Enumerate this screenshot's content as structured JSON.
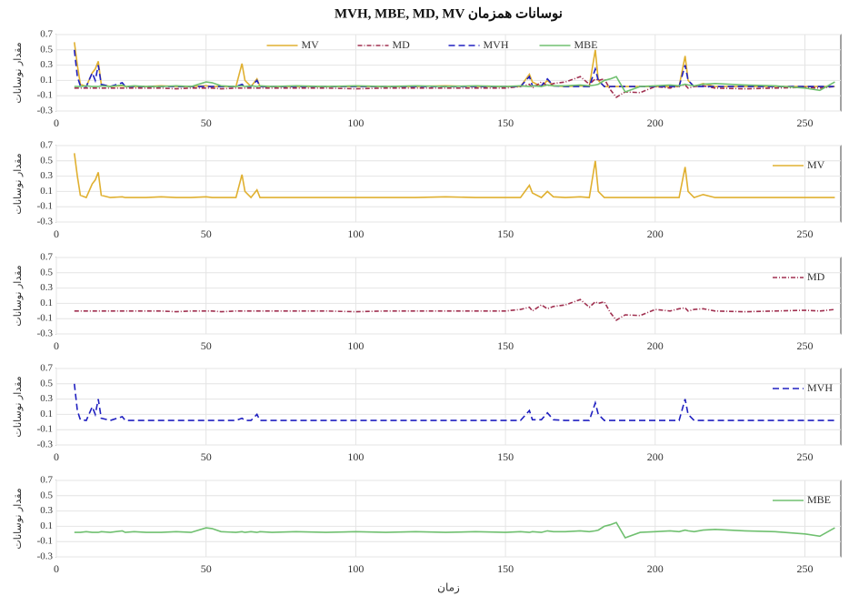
{
  "chart_data": [
    {
      "type": "line",
      "title": "MVH, MBE, MD, MV نوسانات همزمان",
      "ylabel": "مقدار نوسانات",
      "legend": "top",
      "grid": true,
      "xlim": [
        0,
        262
      ],
      "xticks": [
        0,
        50,
        100,
        150,
        200,
        250
      ],
      "ylim": [
        -0.3,
        0.7
      ],
      "yticks": [
        -0.3,
        -0.1,
        0.1,
        0.3,
        0.5,
        0.7
      ],
      "x": [
        6,
        7,
        8,
        10,
        12,
        13,
        14,
        15,
        18,
        22,
        23,
        26,
        30,
        35,
        40,
        45,
        50,
        52,
        55,
        60,
        62,
        63,
        65,
        67,
        68,
        72,
        80,
        90,
        100,
        110,
        120,
        130,
        140,
        150,
        155,
        158,
        159,
        162,
        164,
        166,
        170,
        175,
        178,
        180,
        181,
        183,
        185,
        187,
        190,
        195,
        200,
        205,
        208,
        210,
        211,
        213,
        216,
        220,
        230,
        240,
        250,
        255,
        260
      ],
      "series": [
        {
          "name": "MV",
          "color": "#e0b030",
          "style": "solid",
          "values": [
            0.6,
            0.3,
            0.05,
            0.02,
            0.2,
            0.25,
            0.35,
            0.05,
            0.02,
            0.03,
            0.02,
            0.02,
            0.02,
            0.03,
            0.02,
            0.02,
            0.03,
            0.02,
            0.02,
            0.02,
            0.32,
            0.1,
            0.02,
            0.12,
            0.02,
            0.02,
            0.02,
            0.02,
            0.02,
            0.02,
            0.02,
            0.03,
            0.02,
            0.02,
            0.02,
            0.18,
            0.08,
            0.02,
            0.1,
            0.03,
            0.02,
            0.03,
            0.02,
            0.5,
            0.1,
            0.02,
            0.02,
            0.02,
            0.02,
            0.02,
            0.02,
            0.02,
            0.02,
            0.42,
            0.1,
            0.02,
            0.06,
            0.02,
            0.02,
            0.02,
            0.02,
            0.02,
            0.02
          ]
        },
        {
          "name": "MD",
          "color": "#a03050",
          "style": "dashdot",
          "values": [
            0,
            0,
            0,
            0,
            0,
            0,
            0,
            0,
            0,
            0,
            0,
            0,
            0,
            0,
            -0.01,
            0,
            0,
            0,
            -0.01,
            0,
            0,
            0,
            0,
            0,
            0,
            0,
            0,
            0,
            -0.01,
            0,
            0,
            0,
            0,
            0,
            0.02,
            0.05,
            0,
            0.08,
            0.03,
            0.06,
            0.08,
            0.15,
            0.05,
            0.12,
            0.1,
            0.12,
            -0.02,
            -0.12,
            -0.05,
            -0.06,
            0.02,
            0,
            0.03,
            0.04,
            0,
            0.02,
            0.03,
            0,
            -0.01,
            0,
            0.01,
            0,
            0.02
          ]
        },
        {
          "name": "MVH",
          "color": "#2020c0",
          "style": "dashed",
          "values": [
            0.5,
            0.15,
            0.03,
            0.02,
            0.2,
            0.1,
            0.3,
            0.05,
            0.02,
            0.07,
            0.02,
            0.02,
            0.02,
            0.02,
            0.02,
            0.02,
            0.02,
            0.02,
            0.02,
            0.02,
            0.05,
            0.02,
            0.02,
            0.1,
            0.02,
            0.02,
            0.02,
            0.02,
            0.02,
            0.02,
            0.02,
            0.02,
            0.02,
            0.02,
            0.02,
            0.15,
            0.03,
            0.03,
            0.12,
            0.03,
            0.02,
            0.02,
            0.02,
            0.25,
            0.1,
            0.02,
            0.02,
            0.02,
            0.02,
            0.02,
            0.02,
            0.02,
            0.02,
            0.3,
            0.1,
            0.02,
            0.02,
            0.02,
            0.02,
            0.02,
            0.02,
            0.02,
            0.02
          ]
        },
        {
          "name": "MBE",
          "color": "#70c070",
          "style": "solid",
          "values": [
            0.02,
            0.02,
            0.02,
            0.03,
            0.02,
            0.02,
            0.02,
            0.03,
            0.02,
            0.04,
            0.02,
            0.03,
            0.02,
            0.02,
            0.03,
            0.02,
            0.08,
            0.07,
            0.03,
            0.02,
            0.03,
            0.02,
            0.03,
            0.02,
            0.03,
            0.02,
            0.03,
            0.02,
            0.03,
            0.02,
            0.03,
            0.02,
            0.03,
            0.02,
            0.03,
            0.02,
            0.03,
            0.02,
            0.04,
            0.03,
            0.03,
            0.04,
            0.03,
            0.04,
            0.05,
            0.1,
            0.12,
            0.15,
            -0.05,
            0.02,
            0.03,
            0.04,
            0.03,
            0.05,
            0.04,
            0.03,
            0.05,
            0.06,
            0.04,
            0.03,
            0.0,
            -0.03,
            0.08
          ]
        }
      ]
    },
    {
      "type": "line",
      "ylabel": "مقدار نوسانات",
      "legend": "right",
      "grid": true,
      "xlim": [
        0,
        262
      ],
      "xticks": [
        0,
        50,
        100,
        150,
        200,
        250
      ],
      "ylim": [
        -0.3,
        0.7
      ],
      "yticks": [
        -0.3,
        -0.1,
        0.1,
        0.3,
        0.5,
        0.7
      ],
      "x": [
        6,
        7,
        8,
        10,
        12,
        13,
        14,
        15,
        18,
        22,
        23,
        26,
        30,
        35,
        40,
        45,
        50,
        52,
        55,
        60,
        62,
        63,
        65,
        67,
        68,
        72,
        80,
        90,
        100,
        110,
        120,
        130,
        140,
        150,
        155,
        158,
        159,
        162,
        164,
        166,
        170,
        175,
        178,
        180,
        181,
        183,
        185,
        187,
        190,
        195,
        200,
        205,
        208,
        210,
        211,
        213,
        216,
        220,
        230,
        240,
        250,
        255,
        260
      ],
      "series": [
        {
          "name": "MV",
          "color": "#e0b030",
          "style": "solid",
          "values": [
            0.6,
            0.3,
            0.05,
            0.02,
            0.2,
            0.25,
            0.35,
            0.05,
            0.02,
            0.03,
            0.02,
            0.02,
            0.02,
            0.03,
            0.02,
            0.02,
            0.03,
            0.02,
            0.02,
            0.02,
            0.32,
            0.1,
            0.02,
            0.12,
            0.02,
            0.02,
            0.02,
            0.02,
            0.02,
            0.02,
            0.02,
            0.03,
            0.02,
            0.02,
            0.02,
            0.18,
            0.08,
            0.02,
            0.1,
            0.03,
            0.02,
            0.03,
            0.02,
            0.5,
            0.1,
            0.02,
            0.02,
            0.02,
            0.02,
            0.02,
            0.02,
            0.02,
            0.02,
            0.42,
            0.1,
            0.02,
            0.06,
            0.02,
            0.02,
            0.02,
            0.02,
            0.02,
            0.02
          ]
        }
      ]
    },
    {
      "type": "line",
      "ylabel": "مقدار نوسانات",
      "legend": "right",
      "grid": true,
      "xlim": [
        0,
        262
      ],
      "xticks": [
        0,
        50,
        100,
        150,
        200,
        250
      ],
      "ylim": [
        -0.3,
        0.7
      ],
      "yticks": [
        -0.3,
        -0.1,
        0.1,
        0.3,
        0.5,
        0.7
      ],
      "x": [
        6,
        7,
        8,
        10,
        12,
        13,
        14,
        15,
        18,
        22,
        23,
        26,
        30,
        35,
        40,
        45,
        50,
        52,
        55,
        60,
        62,
        63,
        65,
        67,
        68,
        72,
        80,
        90,
        100,
        110,
        120,
        130,
        140,
        150,
        155,
        158,
        159,
        162,
        164,
        166,
        170,
        175,
        178,
        180,
        181,
        183,
        185,
        187,
        190,
        195,
        200,
        205,
        208,
        210,
        211,
        213,
        216,
        220,
        230,
        240,
        250,
        255,
        260
      ],
      "series": [
        {
          "name": "MD",
          "color": "#a03050",
          "style": "dashdot",
          "values": [
            0,
            0,
            0,
            0,
            0,
            0,
            0,
            0,
            0,
            0,
            0,
            0,
            0,
            0,
            -0.01,
            0,
            0,
            0,
            -0.01,
            0,
            0,
            0,
            0,
            0,
            0,
            0,
            0,
            0,
            -0.01,
            0,
            0,
            0,
            0,
            0,
            0.02,
            0.05,
            0,
            0.08,
            0.03,
            0.06,
            0.08,
            0.15,
            0.05,
            0.12,
            0.1,
            0.12,
            -0.02,
            -0.12,
            -0.05,
            -0.06,
            0.02,
            0,
            0.03,
            0.04,
            0,
            0.02,
            0.03,
            0,
            -0.01,
            0,
            0.01,
            0,
            0.02
          ]
        }
      ]
    },
    {
      "type": "line",
      "ylabel": "مقدار نوسانات",
      "legend": "right",
      "grid": true,
      "xlim": [
        0,
        262
      ],
      "xticks": [
        0,
        50,
        100,
        150,
        200,
        250
      ],
      "ylim": [
        -0.3,
        0.7
      ],
      "yticks": [
        -0.3,
        -0.1,
        0.1,
        0.3,
        0.5,
        0.7
      ],
      "x": [
        6,
        7,
        8,
        10,
        12,
        13,
        14,
        15,
        18,
        22,
        23,
        26,
        30,
        35,
        40,
        45,
        50,
        52,
        55,
        60,
        62,
        63,
        65,
        67,
        68,
        72,
        80,
        90,
        100,
        110,
        120,
        130,
        140,
        150,
        155,
        158,
        159,
        162,
        164,
        166,
        170,
        175,
        178,
        180,
        181,
        183,
        185,
        187,
        190,
        195,
        200,
        205,
        208,
        210,
        211,
        213,
        216,
        220,
        230,
        240,
        250,
        255,
        260
      ],
      "series": [
        {
          "name": "MVH",
          "color": "#2020c0",
          "style": "dashed",
          "values": [
            0.5,
            0.15,
            0.03,
            0.02,
            0.2,
            0.1,
            0.3,
            0.05,
            0.02,
            0.07,
            0.02,
            0.02,
            0.02,
            0.02,
            0.02,
            0.02,
            0.02,
            0.02,
            0.02,
            0.02,
            0.05,
            0.02,
            0.02,
            0.1,
            0.02,
            0.02,
            0.02,
            0.02,
            0.02,
            0.02,
            0.02,
            0.02,
            0.02,
            0.02,
            0.02,
            0.15,
            0.03,
            0.03,
            0.12,
            0.03,
            0.02,
            0.02,
            0.02,
            0.25,
            0.1,
            0.02,
            0.02,
            0.02,
            0.02,
            0.02,
            0.02,
            0.02,
            0.02,
            0.3,
            0.1,
            0.02,
            0.02,
            0.02,
            0.02,
            0.02,
            0.02,
            0.02,
            0.02
          ]
        }
      ]
    },
    {
      "type": "line",
      "ylabel": "مقدار نوسانات",
      "xlabel": "زمان",
      "legend": "right",
      "grid": true,
      "xlim": [
        0,
        262
      ],
      "xticks": [
        0,
        50,
        100,
        150,
        200,
        250
      ],
      "ylim": [
        -0.3,
        0.7
      ],
      "yticks": [
        -0.3,
        -0.1,
        0.1,
        0.3,
        0.5,
        0.7
      ],
      "x": [
        6,
        7,
        8,
        10,
        12,
        13,
        14,
        15,
        18,
        22,
        23,
        26,
        30,
        35,
        40,
        45,
        50,
        52,
        55,
        60,
        62,
        63,
        65,
        67,
        68,
        72,
        80,
        90,
        100,
        110,
        120,
        130,
        140,
        150,
        155,
        158,
        159,
        162,
        164,
        166,
        170,
        175,
        178,
        180,
        181,
        183,
        185,
        187,
        190,
        195,
        200,
        205,
        208,
        210,
        211,
        213,
        216,
        220,
        230,
        240,
        250,
        255,
        260
      ],
      "series": [
        {
          "name": "MBE",
          "color": "#70c070",
          "style": "solid",
          "values": [
            0.02,
            0.02,
            0.02,
            0.03,
            0.02,
            0.02,
            0.02,
            0.03,
            0.02,
            0.04,
            0.02,
            0.03,
            0.02,
            0.02,
            0.03,
            0.02,
            0.08,
            0.07,
            0.03,
            0.02,
            0.03,
            0.02,
            0.03,
            0.02,
            0.03,
            0.02,
            0.03,
            0.02,
            0.03,
            0.02,
            0.03,
            0.02,
            0.03,
            0.02,
            0.03,
            0.02,
            0.03,
            0.02,
            0.04,
            0.03,
            0.03,
            0.04,
            0.03,
            0.04,
            0.05,
            0.1,
            0.12,
            0.15,
            -0.05,
            0.02,
            0.03,
            0.04,
            0.03,
            0.05,
            0.04,
            0.03,
            0.05,
            0.06,
            0.04,
            0.03,
            0.0,
            -0.03,
            0.08
          ]
        }
      ]
    }
  ]
}
